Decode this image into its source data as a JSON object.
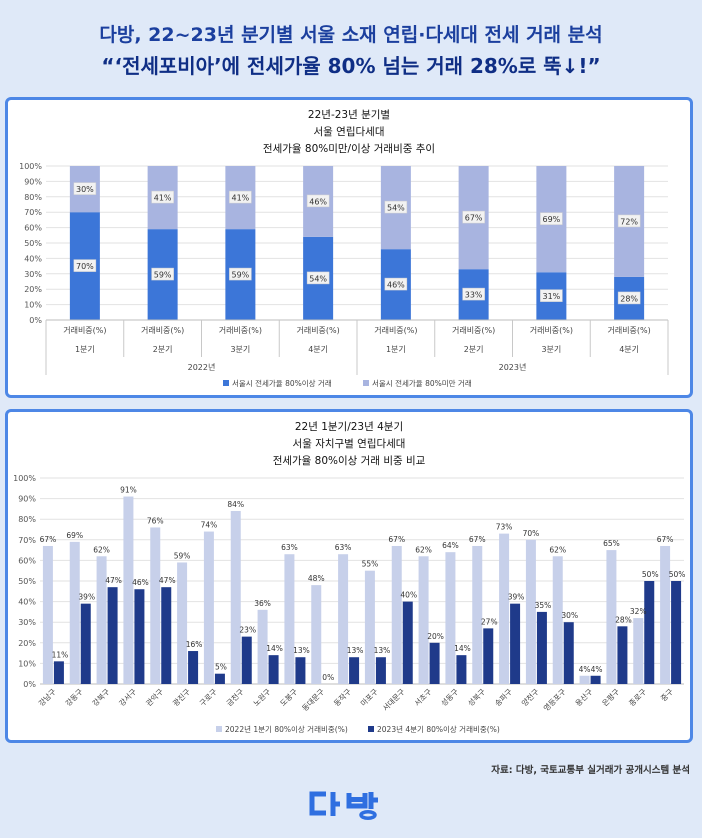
{
  "header": {
    "line1": "다방, 22~23년 분기별 서울 소재 연립·다세대 전세 거래 분석",
    "line2": "“‘전세포비아’에 전세가율 80% 넘는 거래 28%로 뚝↓!”"
  },
  "source": "자료: 다방, 국토교통부 실거래가 공개시스템 분석",
  "logo": {
    "text": "다방",
    "color": "#2f6fe0"
  },
  "colors": {
    "accent": "#4d87e6",
    "dark_blue": "#1f3a8a",
    "light_blue": "#c7d0ea"
  },
  "chart_data": [
    {
      "type": "bar",
      "stacked": true,
      "percent": true,
      "title": [
        "22년-23년 분기별",
        "서울 연립다세대",
        "전세가율 80%미만/이상 거래비중 추이"
      ],
      "categories": [
        "거래비중(%)",
        "거래비중(%)",
        "거래비중(%)",
        "거래비중(%)",
        "거래비중(%)",
        "거래비중(%)",
        "거래비중(%)",
        "거래비중(%)"
      ],
      "quarters": [
        "1분기",
        "2분기",
        "3분기",
        "4분기",
        "1분기",
        "2분기",
        "3분기",
        "4분기"
      ],
      "years": [
        "2022년",
        "2023년"
      ],
      "series": [
        {
          "name": "서울시 전세가율 80%이상 거래",
          "values": [
            70,
            59,
            59,
            54,
            46,
            33,
            31,
            28
          ],
          "labels": [
            "70%",
            "59%",
            "59%",
            "54%",
            "46%",
            "33%",
            "31%",
            "28%"
          ],
          "color": "#3c76d8"
        },
        {
          "name": "서울시 전세가율 80%미만 거래",
          "values": [
            30,
            41,
            41,
            46,
            54,
            67,
            69,
            72
          ],
          "labels": [
            "30%",
            "41%",
            "41%",
            "46%",
            "54%",
            "67%",
            "69%",
            "72%"
          ],
          "color": "#a8b4e0"
        }
      ],
      "yticks": [
        "0%",
        "10%",
        "20%",
        "30%",
        "40%",
        "50%",
        "60%",
        "70%",
        "80%",
        "90%",
        "100%"
      ],
      "ylim": [
        0,
        100
      ],
      "legend": "bottom"
    },
    {
      "type": "bar",
      "grouped": true,
      "title": [
        "22년 1분기/23년 4분기",
        "서울 자치구별 연립다세대",
        "전세가율 80%이상 거래 비중 비교"
      ],
      "categories": [
        "강남구",
        "강동구",
        "강북구",
        "강서구",
        "관악구",
        "광진구",
        "구로구",
        "금천구",
        "노원구",
        "도봉구",
        "동대문구",
        "동작구",
        "마포구",
        "서대문구",
        "서초구",
        "성동구",
        "성북구",
        "송파구",
        "양천구",
        "영등포구",
        "용산구",
        "은평구",
        "종로구",
        "중구"
      ],
      "series": [
        {
          "name": "2022년 1분기 80%이상 거래비중(%)",
          "values": [
            67,
            69,
            62,
            91,
            76,
            59,
            74,
            84,
            36,
            63,
            48,
            63,
            55,
            67,
            62,
            64,
            67,
            73,
            70,
            62,
            4,
            65,
            32,
            67
          ],
          "labels": [
            "67%",
            "69%",
            "62%",
            "91%",
            "76%",
            "59%",
            "74%",
            "84%",
            "36%",
            "63%",
            "48%",
            "63%",
            "55%",
            "67%",
            "62%",
            "64%",
            "67%",
            "73%",
            "70%",
            "62%",
            "4%",
            "65%",
            "32%",
            "67%"
          ],
          "color": "#c7d0ea"
        },
        {
          "name": "2023년 4분기 80%이상 거래비중(%)",
          "values": [
            11,
            39,
            47,
            46,
            47,
            16,
            5,
            23,
            14,
            13,
            0,
            13,
            13,
            40,
            20,
            14,
            27,
            39,
            35,
            30,
            4,
            28,
            50,
            50
          ],
          "labels": [
            "11%",
            "39%",
            "47%",
            "46%",
            "47%",
            "16%",
            "5%",
            "23%",
            "14%",
            "13%",
            "0%",
            "13%",
            "13%",
            "40%",
            "20%",
            "14%",
            "27%",
            "39%",
            "35%",
            "30%",
            "4%",
            "28%",
            "50%",
            "50%"
          ],
          "color": "#1f3a8a"
        }
      ],
      "yticks": [
        "0%",
        "10%",
        "20%",
        "30%",
        "40%",
        "50%",
        "60%",
        "70%",
        "80%",
        "90%",
        "100%"
      ],
      "ylim": [
        0,
        100
      ],
      "legend": "bottom"
    }
  ]
}
